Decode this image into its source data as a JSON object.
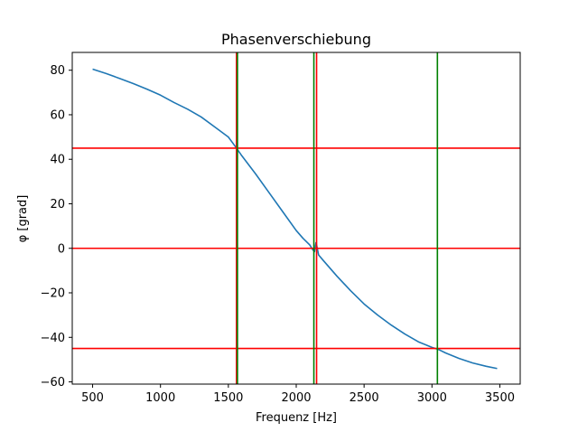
{
  "chart_data": {
    "type": "line",
    "title": "Phasenverschiebung",
    "xlabel": "Frequenz [Hz]",
    "ylabel": "φ [grad]",
    "xlim": [
      350,
      3650
    ],
    "ylim": [
      -61,
      88
    ],
    "xticks": [
      500,
      1000,
      1500,
      2000,
      2500,
      3000,
      3500
    ],
    "yticks": [
      -60,
      -40,
      -20,
      0,
      20,
      40,
      60,
      80
    ],
    "xtick_labels": [
      "500",
      "1000",
      "1500",
      "2000",
      "2500",
      "3000",
      "3500"
    ],
    "ytick_labels": [
      "−60",
      "−40",
      "−20",
      "0",
      "20",
      "40",
      "60",
      "80"
    ],
    "grid": false,
    "series": [
      {
        "color": "#1f77b4",
        "x": [
          500,
          600,
          700,
          800,
          900,
          1000,
          1100,
          1200,
          1300,
          1400,
          1500,
          1560,
          1600,
          1700,
          1800,
          1900,
          2000,
          2050,
          2100,
          2120,
          2135,
          2145,
          2150,
          2165,
          2200,
          2300,
          2400,
          2500,
          2600,
          2700,
          2800,
          2900,
          3000,
          3050,
          3100,
          3200,
          3300,
          3400,
          3480
        ],
        "y": [
          80.5,
          78.5,
          76.3,
          74.0,
          71.5,
          68.8,
          65.5,
          62.5,
          59.0,
          54.5,
          50.0,
          45.0,
          41.5,
          33.5,
          25.0,
          16.5,
          8.0,
          4.5,
          1.5,
          -0.5,
          -1.5,
          2.5,
          1.5,
          -3.0,
          -5.5,
          -12.5,
          -19.0,
          -25.0,
          -30.0,
          -34.5,
          -38.5,
          -42.0,
          -44.5,
          -45.5,
          -47.0,
          -49.5,
          -51.5,
          -53.0,
          -54.0
        ]
      }
    ],
    "hlines": [
      {
        "y": 45,
        "color": "#ff0000"
      },
      {
        "y": 0,
        "color": "#ff0000"
      },
      {
        "y": -45,
        "color": "#ff0000"
      }
    ],
    "vlines": [
      {
        "x": 1560,
        "color": "#ff0000"
      },
      {
        "x": 1567,
        "color": "#008000"
      },
      {
        "x": 2130,
        "color": "#008000"
      },
      {
        "x": 2150,
        "color": "#ff0000"
      },
      {
        "x": 3040,
        "color": "#008000"
      }
    ]
  }
}
